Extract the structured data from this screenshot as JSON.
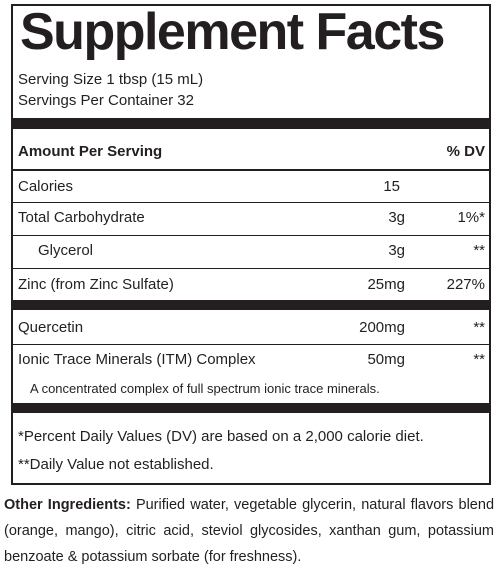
{
  "title": "Supplement Facts",
  "serving_size": "Serving Size 1 tbsp (15 mL)",
  "servings_per_container": "Servings Per Container 32",
  "header": {
    "amount": "Amount Per Serving",
    "dv": "% DV"
  },
  "rows": [
    [
      "Calories",
      "15"
    ],
    [
      "Total Carbohydrate",
      "3g",
      "1%*"
    ],
    [
      "Glycerol",
      "3g",
      "**"
    ],
    [
      "Zinc (from Zinc Sulfate)",
      "25mg",
      "227%"
    ],
    [
      "Quercetin",
      "200mg",
      "**"
    ],
    [
      "Ionic Trace Minerals (ITM) Complex",
      "50mg",
      "**"
    ]
  ],
  "note": "A concentrated complex of full spectrum ionic trace minerals.",
  "footnotes": [
    "*Percent Daily Values (DV) are based on a 2,000 calorie diet.",
    "**Daily Value not established."
  ],
  "other_ingredients": {
    "label": "Other Ingredients:",
    "text": "Purified water, vegetable glycerin, natural flavors blend (orange, mango), citric acid, steviol glycosides, xanthan gum, potassium benzoate & potassium sorbate (for freshness)."
  }
}
